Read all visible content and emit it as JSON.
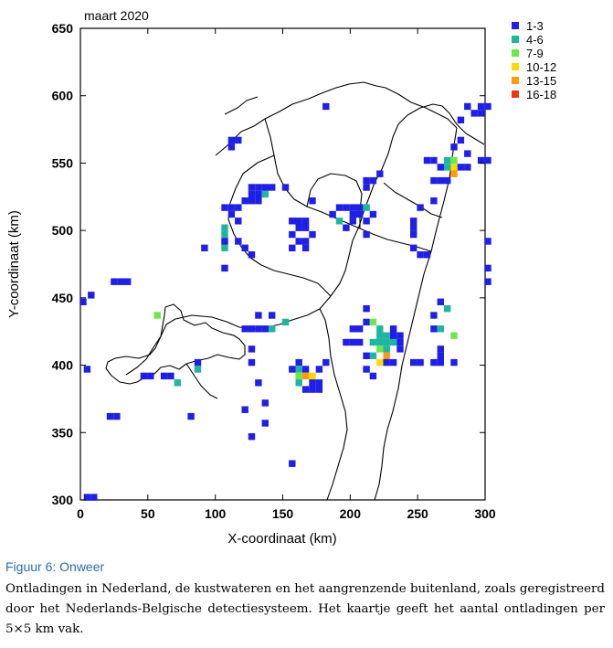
{
  "chart_data": {
    "type": "heatmap",
    "title": "maart 2020",
    "xlabel": "X-coordinaat (km)",
    "ylabel": "Y-coordinaat (km)",
    "xlim": [
      0,
      300
    ],
    "ylim": [
      300,
      650
    ],
    "xticks": [
      "0",
      "50",
      "100",
      "150",
      "200",
      "250",
      "300"
    ],
    "yticks": [
      "300",
      "350",
      "400",
      "450",
      "500",
      "550",
      "600",
      "650"
    ],
    "cell_size_km": 5,
    "legend_position": "top-right, outside plot",
    "bins": [
      {
        "label": "1-3",
        "color": "#1f1fe6"
      },
      {
        "label": "4-6",
        "color": "#1fb59f"
      },
      {
        "label": "7-9",
        "color": "#6fe64a"
      },
      {
        "label": "10-12",
        "color": "#ffd800"
      },
      {
        "label": "13-15",
        "color": "#ff9a0a"
      },
      {
        "label": "16-18",
        "color": "#e83a10"
      }
    ],
    "points": [
      [
        2,
        447,
        0
      ],
      [
        8,
        452,
        0
      ],
      [
        5,
        397,
        0
      ],
      [
        5,
        302,
        0
      ],
      [
        10,
        302,
        0
      ],
      [
        25,
        462,
        0
      ],
      [
        30,
        462,
        0
      ],
      [
        35,
        462,
        0
      ],
      [
        22,
        362,
        0
      ],
      [
        27,
        362,
        0
      ],
      [
        57,
        437,
        2
      ],
      [
        47,
        392,
        0
      ],
      [
        52,
        392,
        0
      ],
      [
        62,
        392,
        0
      ],
      [
        67,
        392,
        0
      ],
      [
        72,
        387,
        1
      ],
      [
        82,
        362,
        0
      ],
      [
        87,
        402,
        0
      ],
      [
        87,
        397,
        1
      ],
      [
        92,
        487,
        0
      ],
      [
        107,
        472,
        0
      ],
      [
        107,
        517,
        0
      ],
      [
        107,
        497,
        1
      ],
      [
        107,
        487,
        1
      ],
      [
        107,
        492,
        0
      ],
      [
        107,
        502,
        1
      ],
      [
        112,
        517,
        0
      ],
      [
        112,
        512,
        0
      ],
      [
        117,
        517,
        0
      ],
      [
        117,
        507,
        0
      ],
      [
        117,
        492,
        0
      ],
      [
        122,
        487,
        0
      ],
      [
        127,
        482,
        0
      ],
      [
        127,
        522,
        0
      ],
      [
        127,
        527,
        0
      ],
      [
        132,
        527,
        0
      ],
      [
        132,
        532,
        0
      ],
      [
        127,
        532,
        0
      ],
      [
        137,
        527,
        1
      ],
      [
        137,
        532,
        0
      ],
      [
        142,
        532,
        0
      ],
      [
        132,
        522,
        0
      ],
      [
        122,
        522,
        0
      ],
      [
        112,
        562,
        0
      ],
      [
        117,
        567,
        0
      ],
      [
        112,
        567,
        0
      ],
      [
        152,
        532,
        0
      ],
      [
        157,
        507,
        0
      ],
      [
        162,
        507,
        0
      ],
      [
        167,
        507,
        0
      ],
      [
        157,
        497,
        0
      ],
      [
        162,
        502,
        0
      ],
      [
        167,
        502,
        0
      ],
      [
        157,
        487,
        0
      ],
      [
        167,
        487,
        0
      ],
      [
        172,
        497,
        0
      ],
      [
        167,
        492,
        0
      ],
      [
        162,
        492,
        0
      ],
      [
        172,
        522,
        0
      ],
      [
        187,
        512,
        0
      ],
      [
        192,
        517,
        0
      ],
      [
        197,
        517,
        0
      ],
      [
        202,
        517,
        0
      ],
      [
        202,
        507,
        0
      ],
      [
        197,
        502,
        0
      ],
      [
        192,
        507,
        1
      ],
      [
        202,
        512,
        0
      ],
      [
        207,
        512,
        0
      ],
      [
        207,
        517,
        0
      ],
      [
        212,
        517,
        1
      ],
      [
        212,
        507,
        0
      ],
      [
        217,
        512,
        0
      ],
      [
        212,
        537,
        0
      ],
      [
        217,
        537,
        0
      ],
      [
        212,
        532,
        0
      ],
      [
        222,
        542,
        0
      ],
      [
        212,
        497,
        0
      ],
      [
        182,
        592,
        0
      ],
      [
        122,
        427,
        0
      ],
      [
        127,
        427,
        0
      ],
      [
        132,
        427,
        0
      ],
      [
        137,
        427,
        0
      ],
      [
        132,
        437,
        0
      ],
      [
        142,
        437,
        0
      ],
      [
        142,
        427,
        1
      ],
      [
        152,
        432,
        1
      ],
      [
        127,
        402,
        0
      ],
      [
        127,
        412,
        0
      ],
      [
        122,
        367,
        0
      ],
      [
        127,
        347,
        0
      ],
      [
        137,
        357,
        0
      ],
      [
        137,
        372,
        0
      ],
      [
        132,
        387,
        0
      ],
      [
        157,
        397,
        0
      ],
      [
        162,
        402,
        0
      ],
      [
        162,
        397,
        1
      ],
      [
        162,
        392,
        2
      ],
      [
        167,
        397,
        0
      ],
      [
        167,
        392,
        4
      ],
      [
        172,
        392,
        3
      ],
      [
        162,
        387,
        1
      ],
      [
        172,
        387,
        0
      ],
      [
        177,
        387,
        0
      ],
      [
        177,
        382,
        0
      ],
      [
        172,
        382,
        0
      ],
      [
        167,
        382,
        0
      ],
      [
        177,
        397,
        0
      ],
      [
        182,
        402,
        0
      ],
      [
        157,
        327,
        0
      ],
      [
        197,
        417,
        0
      ],
      [
        202,
        417,
        0
      ],
      [
        202,
        427,
        0
      ],
      [
        207,
        417,
        0
      ],
      [
        207,
        427,
        0
      ],
      [
        212,
        442,
        0
      ],
      [
        212,
        432,
        0
      ],
      [
        217,
        432,
        2
      ],
      [
        222,
        427,
        1
      ],
      [
        222,
        422,
        1
      ],
      [
        217,
        417,
        1
      ],
      [
        222,
        417,
        1
      ],
      [
        227,
        422,
        1
      ],
      [
        227,
        417,
        1
      ],
      [
        232,
        417,
        1
      ],
      [
        227,
        412,
        1
      ],
      [
        222,
        412,
        2
      ],
      [
        227,
        407,
        4
      ],
      [
        222,
        402,
        3
      ],
      [
        227,
        402,
        0
      ],
      [
        217,
        407,
        1
      ],
      [
        232,
        402,
        0
      ],
      [
        212,
        407,
        0
      ],
      [
        212,
        397,
        0
      ],
      [
        217,
        392,
        0
      ],
      [
        232,
        422,
        0
      ],
      [
        237,
        422,
        0
      ],
      [
        237,
        417,
        0
      ],
      [
        232,
        427,
        0
      ],
      [
        237,
        412,
        0
      ],
      [
        247,
        402,
        0
      ],
      [
        252,
        402,
        0
      ],
      [
        262,
        402,
        0
      ],
      [
        267,
        402,
        0
      ],
      [
        262,
        427,
        0
      ],
      [
        267,
        427,
        1
      ],
      [
        272,
        442,
        1
      ],
      [
        267,
        447,
        0
      ],
      [
        262,
        437,
        0
      ],
      [
        267,
        412,
        0
      ],
      [
        267,
        407,
        0
      ],
      [
        277,
        422,
        2
      ],
      [
        277,
        402,
        0
      ],
      [
        247,
        507,
        0
      ],
      [
        247,
        502,
        0
      ],
      [
        247,
        497,
        0
      ],
      [
        247,
        487,
        0
      ],
      [
        252,
        482,
        0
      ],
      [
        257,
        482,
        0
      ],
      [
        252,
        517,
        0
      ],
      [
        262,
        522,
        0
      ],
      [
        262,
        537,
        0
      ],
      [
        267,
        537,
        0
      ],
      [
        272,
        537,
        0
      ],
      [
        257,
        552,
        0
      ],
      [
        262,
        552,
        0
      ],
      [
        267,
        547,
        0
      ],
      [
        272,
        547,
        1
      ],
      [
        272,
        552,
        1
      ],
      [
        277,
        552,
        2
      ],
      [
        277,
        547,
        3
      ],
      [
        277,
        542,
        4
      ],
      [
        282,
        547,
        0
      ],
      [
        287,
        547,
        0
      ],
      [
        277,
        562,
        0
      ],
      [
        282,
        567,
        0
      ],
      [
        287,
        557,
        0
      ],
      [
        282,
        582,
        0
      ],
      [
        287,
        592,
        0
      ],
      [
        292,
        587,
        0
      ],
      [
        297,
        587,
        0
      ],
      [
        297,
        592,
        0
      ],
      [
        302,
        592,
        0
      ],
      [
        297,
        552,
        0
      ],
      [
        302,
        552,
        0
      ],
      [
        302,
        492,
        0
      ],
      [
        302,
        472,
        0
      ],
      [
        302,
        462,
        0
      ]
    ]
  },
  "caption": {
    "title": "Figuur 6: Onweer",
    "text": "Ontladingen in Nederland, de kustwateren en het aangrenzende buitenland, zoals geregistreerd door het Nederlands-Belgische detectiesysteem. Het kaartje geeft het aantal ontladingen per 5×5 km vak."
  }
}
